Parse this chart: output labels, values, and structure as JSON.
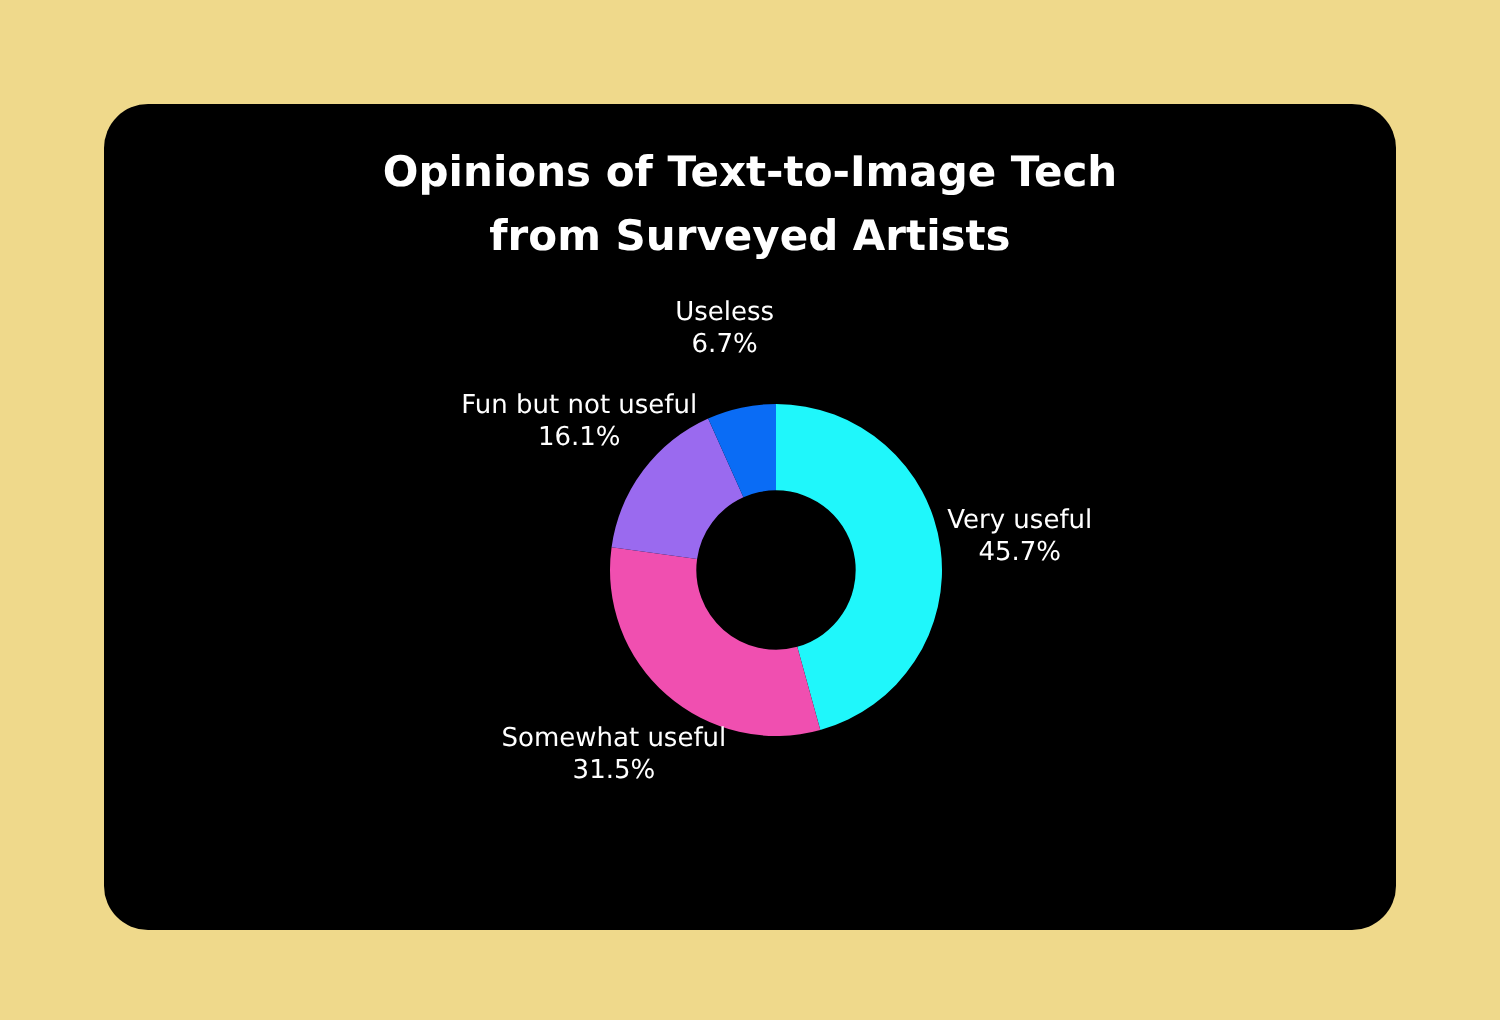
{
  "chart_data": {
    "type": "donut",
    "title": "Opinions of Text-to-Image Tech\nfrom Surveyed Artists",
    "categories": [
      "Very useful",
      "Somewhat useful",
      "Fun but not useful",
      "Useless"
    ],
    "values": [
      45.7,
      31.5,
      16.1,
      6.7
    ],
    "value_labels": [
      "45.7%",
      "31.5%",
      "16.1%",
      "6.7%"
    ],
    "colors": [
      "#1ff7fb",
      "#f04fb0",
      "#9a6aef",
      "#0a6cf5"
    ],
    "legend": false
  }
}
